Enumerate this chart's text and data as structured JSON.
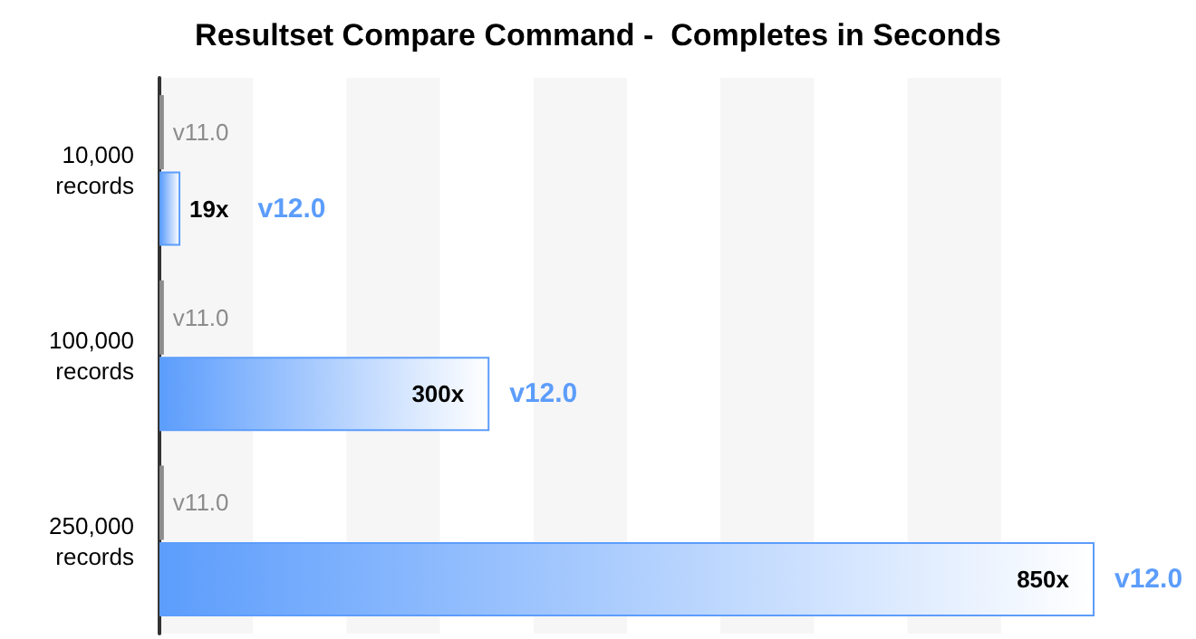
{
  "chart_data": {
    "type": "bar",
    "orientation": "horizontal",
    "title": "Resultset Compare Command -  Completes in Seconds",
    "categories": [
      "10,000\nrecords",
      "100,000\nrecords",
      "250,000\nrecords"
    ],
    "series": [
      {
        "name": "v11.0",
        "color": "#8c8c8c",
        "values": [
          4,
          4,
          4
        ]
      },
      {
        "name": "v12.0",
        "color": "#5c9dfc",
        "values": [
          19,
          300,
          850
        ],
        "value_labels": [
          "19x",
          "300x",
          "850x"
        ]
      }
    ],
    "bands": [
      {
        "axis": "x",
        "from": 0,
        "to": 85,
        "color": "#f6f6f6"
      },
      {
        "axis": "x",
        "from": 170,
        "to": 255,
        "color": "#f6f6f6"
      },
      {
        "axis": "x",
        "from": 340,
        "to": 425,
        "color": "#f6f6f6"
      },
      {
        "axis": "x",
        "from": 510,
        "to": 595,
        "color": "#f6f6f6"
      },
      {
        "axis": "x",
        "from": 680,
        "to": 765,
        "color": "#f6f6f6"
      }
    ],
    "legend": false
  }
}
